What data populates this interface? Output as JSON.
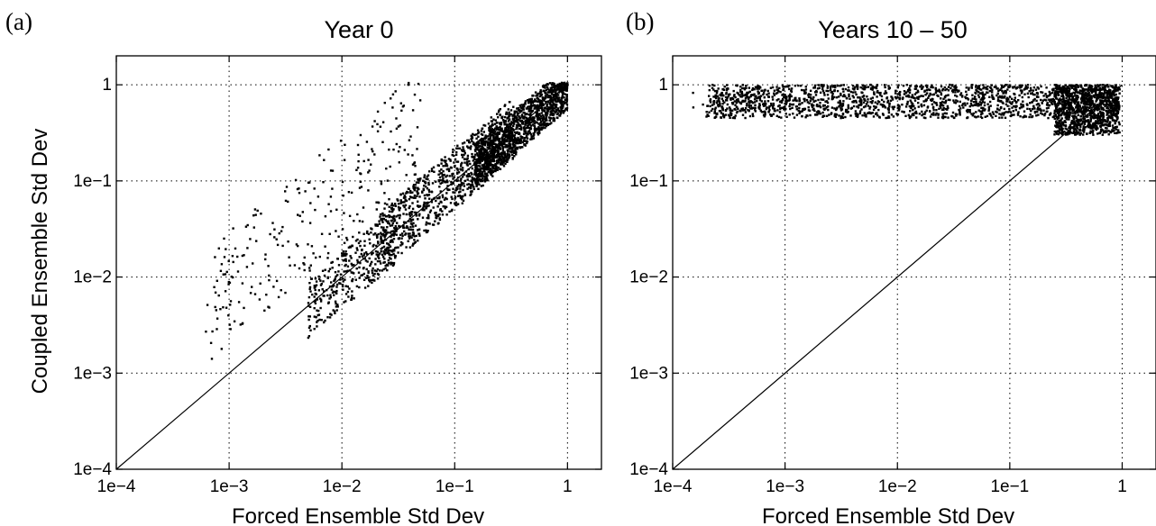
{
  "chart_data": [
    {
      "type": "scatter",
      "panel_label": "(a)",
      "title": "Year 0",
      "xlabel": "Forced Ensemble Std Dev",
      "ylabel": "Coupled Ensemble Std Dev",
      "xscale": "log",
      "yscale": "log",
      "xlim": [
        0.0001,
        2
      ],
      "ylim": [
        0.0001,
        2
      ],
      "xticks": [
        0.0001,
        0.001,
        0.01,
        0.1,
        1
      ],
      "xtick_labels": [
        "1e−4",
        "1e−3",
        "1e−2",
        "1e−1",
        "1"
      ],
      "yticks": [
        0.0001,
        0.001,
        0.01,
        0.1,
        1
      ],
      "ytick_labels": [
        "1e−4",
        "1e−3",
        "1e−2",
        "1e−1",
        "1"
      ],
      "grid": true,
      "reference_line": "y = x",
      "point_cloud": {
        "description_values": "dense cloud along y=x from ~0.003 to 1; sparse off-diagonal scatter above the line between x 5e-4 and 0.05",
        "seed": 7,
        "groups": [
          {
            "n": 1300,
            "x_range": [
              0.15,
              1.0
            ],
            "y_ratio_range": [
              0.55,
              1.6
            ]
          },
          {
            "n": 900,
            "x_range": [
              0.02,
              0.35
            ],
            "y_ratio_range": [
              0.5,
              2.2
            ]
          },
          {
            "n": 350,
            "x_range": [
              0.005,
              0.03
            ],
            "y_ratio_range": [
              0.45,
              1.8
            ]
          },
          {
            "n": 260,
            "x_range": [
              0.0006,
              0.05
            ],
            "y_ratio_range": [
              2.0,
              30.0
            ]
          }
        ]
      }
    },
    {
      "type": "scatter",
      "panel_label": "(b)",
      "title": "Years 10 – 50",
      "xlabel": "Forced Ensemble Std Dev",
      "ylabel": "",
      "xscale": "log",
      "yscale": "log",
      "xlim": [
        0.0001,
        2
      ],
      "ylim": [
        0.0001,
        2
      ],
      "xticks": [
        0.0001,
        0.001,
        0.01,
        0.1,
        1
      ],
      "xtick_labels": [
        "1e−4",
        "1e−3",
        "1e−2",
        "1e−1",
        "1"
      ],
      "yticks": [
        0.0001,
        0.001,
        0.01,
        0.1,
        1
      ],
      "ytick_labels": [
        "1e−4",
        "1e−3",
        "1e−2",
        "1e−1",
        "1"
      ],
      "grid": true,
      "reference_line": "y = x",
      "point_cloud": {
        "description_values": "horizontal band at y ~0.5-1.0 spanning x from 1.5e-4 to 1; denser near x 0.3-1",
        "seed": 11,
        "groups": [
          {
            "n": 1700,
            "x_range": [
              0.0002,
              0.9
            ],
            "y_range": [
              0.45,
              1.0
            ]
          },
          {
            "n": 900,
            "x_range": [
              0.25,
              0.95
            ],
            "y_range": [
              0.3,
              1.0
            ]
          },
          {
            "n": 60,
            "x_range": [
              0.00015,
              0.001
            ],
            "y_range": [
              0.55,
              0.9
            ]
          }
        ]
      }
    }
  ]
}
